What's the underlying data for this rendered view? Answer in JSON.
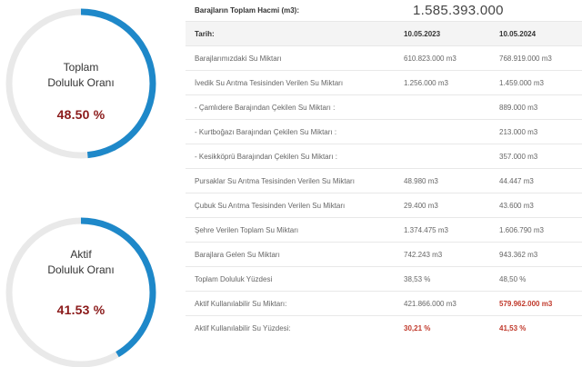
{
  "gauges": {
    "total": {
      "title_line1": "Toplam",
      "title_line2": "Doluluk Oranı",
      "value": "48.50 %",
      "fraction": 0.485,
      "accent": "#1e88c9"
    },
    "active": {
      "title_line1": "Aktif",
      "title_line2": "Doluluk Oranı",
      "value": "41.53 %",
      "fraction": 0.4153,
      "accent": "#1e88c9"
    }
  },
  "summary": {
    "label": "Barajların Toplam Hacmi (m3):",
    "value": "1.585.393.000"
  },
  "table": {
    "header": {
      "label": "Tarih:",
      "date1": "10.05.2023",
      "date2": "10.05.2024"
    },
    "rows": [
      {
        "label": "Barajlarımızdaki Su Miktarı",
        "v1": "610.823.000 m3",
        "v2": "768.919.000 m3"
      },
      {
        "label": "İvedik Su Arıtma Tesisinden Verilen Su Miktarı",
        "v1": "1.256.000 m3",
        "v2": "1.459.000 m3"
      },
      {
        "label": "- Çamlıdere Barajından Çekilen Su Miktarı :",
        "v1": "",
        "v2": "889.000 m3"
      },
      {
        "label": "- Kurtboğazı Barajından Çekilen Su Miktarı :",
        "v1": "",
        "v2": "213.000 m3"
      },
      {
        "label": "- Kesikköprü Barajından Çekilen Su Miktarı :",
        "v1": "",
        "v2": "357.000 m3"
      },
      {
        "label": "Pursaklar Su Arıtma Tesisinden Verilen Su Miktarı",
        "v1": "48.980 m3",
        "v2": "44.447 m3"
      },
      {
        "label": "Çubuk Su Arıtma Tesisinden Verilen Su Miktarı",
        "v1": "29.400 m3",
        "v2": "43.600 m3"
      },
      {
        "label": "Şehre Verilen Toplam Su Miktarı",
        "v1": "1.374.475 m3",
        "v2": "1.606.790 m3"
      },
      {
        "label": "Barajlara Gelen Su Miktarı",
        "v1": "742.243 m3",
        "v2": "943.362 m3"
      },
      {
        "label": "Toplam Doluluk Yüzdesi",
        "v1": "38,53 %",
        "v2": "48,50 %"
      },
      {
        "label": "Aktif Kullanılabilir Su Miktarı:",
        "v1": "421.866.000 m3",
        "v2": "579.962.000 m3"
      },
      {
        "label": "Aktif Kullanılabilir Su Yüzdesi:",
        "v1": "30,21 %",
        "v2": "41,53 %"
      }
    ]
  }
}
